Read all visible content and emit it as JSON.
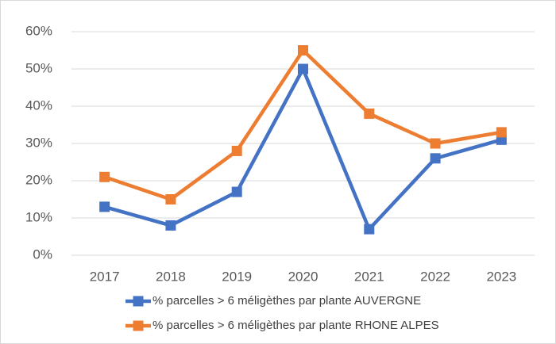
{
  "chart_data": {
    "type": "line",
    "categories": [
      "2017",
      "2018",
      "2019",
      "2020",
      "2021",
      "2022",
      "2023"
    ],
    "series": [
      {
        "name": "% parcelles > 6 méligèthes par plante AUVERGNE",
        "color": "#4472c4",
        "values": [
          13,
          8,
          17,
          50,
          7,
          26,
          31
        ]
      },
      {
        "name": "% parcelles > 6 méligèthes par plante RHONE ALPES",
        "color": "#ed7d31",
        "values": [
          21,
          15,
          28,
          55,
          38,
          30,
          33
        ]
      }
    ],
    "ylim": [
      0,
      60
    ],
    "yticks": [
      {
        "value": 0,
        "label": "0%"
      },
      {
        "value": 10,
        "label": "10%"
      },
      {
        "value": 20,
        "label": "20%"
      },
      {
        "value": 30,
        "label": "30%"
      },
      {
        "value": 40,
        "label": "40%"
      },
      {
        "value": 50,
        "label": "50%"
      },
      {
        "value": 60,
        "label": "60%"
      }
    ],
    "grid": true,
    "legend": "bottom"
  }
}
